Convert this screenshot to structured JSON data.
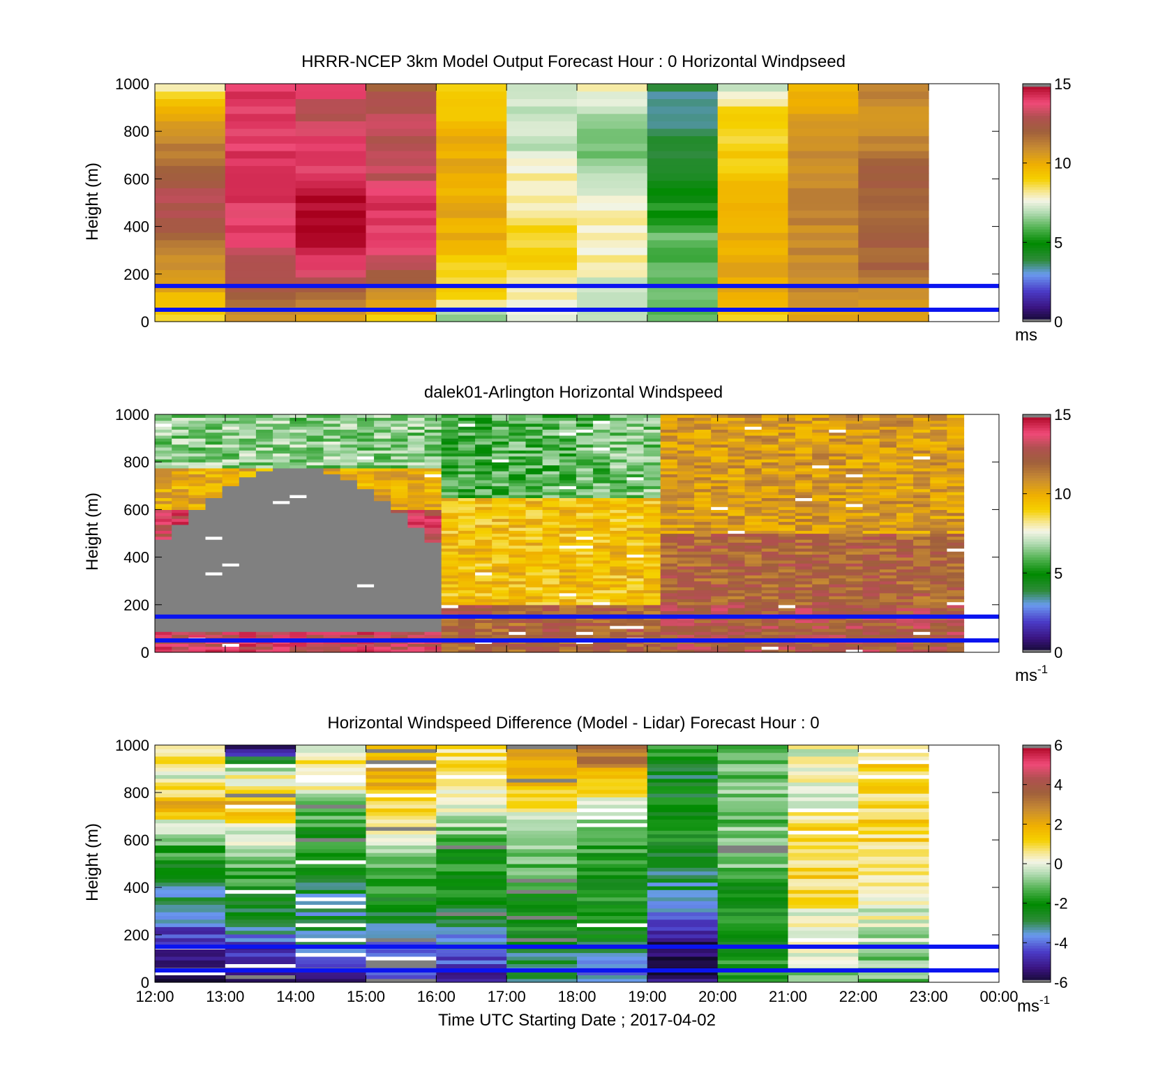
{
  "figure": {
    "xlabel": "Time UTC  Starting Date ; 2017-04-02"
  },
  "chart_data": [
    {
      "type": "heatmap",
      "title": "HRRR-NCEP 3km Model Output   Forecast Hour : 0 Horizontal Windpseed",
      "ylabel": "Height (m)",
      "xlabel": "",
      "x_ticks": [
        "12:00",
        "13:00",
        "14:00",
        "15:00",
        "16:00",
        "17:00",
        "18:00",
        "19:00",
        "20:00",
        "21:00",
        "22:00",
        "23:00",
        "00:00"
      ],
      "x_tick_labels_visible": false,
      "xlim_hours": [
        12,
        24
      ],
      "ylim": [
        0,
        1000
      ],
      "y_ticks": [
        0,
        200,
        400,
        600,
        800,
        1000
      ],
      "colorbar": {
        "min": 0,
        "max": 15,
        "ticks": [
          0,
          5,
          10,
          15
        ],
        "unit": "ms",
        "unit_sup": ""
      },
      "reference_lines_m": [
        150,
        50
      ],
      "reference_line_color": "#0a14f0",
      "grid_kind": "model",
      "columns_hourly_windspeed_ms": {
        "hours": [
          "12:00",
          "13:00",
          "14:00",
          "15:00",
          "16:00",
          "17:00",
          "18:00",
          "19:00",
          "20:00",
          "21:00",
          "22:00"
        ],
        "surface_to_1000m_profile_summary": [
          [
            9,
            10,
            11,
            12,
            13,
            12,
            11,
            10,
            8
          ],
          [
            11,
            12,
            13,
            14,
            14,
            14,
            14,
            14,
            14
          ],
          [
            10,
            12,
            14,
            15,
            15,
            14,
            14,
            13,
            14
          ],
          [
            9,
            11,
            13,
            14,
            14,
            13,
            13,
            13,
            12
          ],
          [
            6,
            9,
            9,
            10,
            10,
            10,
            10,
            9,
            9
          ],
          [
            7,
            8,
            9,
            9,
            8,
            8,
            7,
            7,
            7
          ],
          [
            7,
            7,
            8,
            8,
            8,
            7,
            6,
            7,
            8
          ],
          [
            6,
            6,
            6,
            6,
            5,
            4,
            4,
            3,
            4
          ],
          [
            9,
            10,
            10,
            10,
            10,
            9,
            9,
            9,
            7
          ],
          [
            10,
            11,
            11,
            11,
            11,
            11,
            11,
            10,
            10
          ],
          [
            10,
            11,
            12,
            12,
            12,
            12,
            11,
            11,
            11
          ]
        ]
      }
    },
    {
      "type": "heatmap",
      "title": "dalek01-Arlington  Horizontal Windspeed",
      "ylabel": "Height (m)",
      "xlabel": "",
      "x_ticks": [
        "12:00",
        "13:00",
        "14:00",
        "15:00",
        "16:00",
        "17:00",
        "18:00",
        "19:00",
        "20:00",
        "21:00",
        "22:00",
        "23:00",
        "00:00"
      ],
      "x_tick_labels_visible": false,
      "xlim_hours": [
        12,
        24
      ],
      "ylim": [
        0,
        1000
      ],
      "y_ticks": [
        0,
        200,
        400,
        600,
        800,
        1000
      ],
      "colorbar": {
        "min": 0,
        "max": 15,
        "ticks": [
          0,
          5,
          10,
          15
        ],
        "unit": "ms",
        "unit_sup": "-1"
      },
      "reference_lines_m": [
        150,
        50
      ],
      "reference_line_color": "#0a14f0",
      "grid_kind": "lidar",
      "missing_data_region": "grey (no retrieval) from about 100 m up to 450–780 m between 12:00 and 16:00"
    },
    {
      "type": "heatmap",
      "title": "Horizontal Windspeed Difference (Model - Lidar) Forecast Hour : 0",
      "ylabel": "Height (m)",
      "xlabel": "Time UTC  Starting Date ; 2017-04-02",
      "x_ticks": [
        "12:00",
        "13:00",
        "14:00",
        "15:00",
        "16:00",
        "17:00",
        "18:00",
        "19:00",
        "20:00",
        "21:00",
        "22:00",
        "23:00",
        "00:00"
      ],
      "x_tick_labels_visible": true,
      "xlim_hours": [
        12,
        24
      ],
      "ylim": [
        0,
        1000
      ],
      "y_ticks": [
        0,
        200,
        400,
        600,
        800,
        1000
      ],
      "colorbar": {
        "min": -6,
        "max": 6,
        "ticks": [
          -6,
          -4,
          -2,
          0,
          2,
          4,
          6
        ],
        "unit": "ms",
        "unit_sup": "-1"
      },
      "reference_lines_m": [
        150,
        50
      ],
      "reference_line_color": "#0a14f0",
      "grid_kind": "difference",
      "columns_hourly_difference_ms": {
        "hours": [
          "12:00",
          "13:00",
          "14:00",
          "15:00",
          "16:00",
          "17:00",
          "18:00",
          "19:00",
          "20:00",
          "21:00",
          "22:00"
        ],
        "surface_to_1000m_profile_summary": [
          [
            -6,
            -5,
            -4,
            -3,
            -2,
            -1,
            2,
            0,
            1
          ],
          [
            -5,
            -5,
            -3,
            -2,
            -1,
            0,
            2,
            0,
            -6
          ],
          [
            -5,
            -4,
            -3,
            -3,
            -2,
            -2,
            -1,
            1,
            0
          ],
          [
            -5,
            -4,
            -3,
            -2,
            -1,
            0,
            1,
            2,
            2
          ],
          [
            -5,
            -4,
            -3,
            -2,
            -2,
            -1,
            0,
            1,
            1
          ],
          [
            -3,
            -3,
            -2,
            -2,
            -1,
            -1,
            1,
            2,
            2
          ],
          [
            -4,
            -3,
            -2,
            -2,
            -2,
            -1,
            0,
            2,
            4
          ],
          [
            -5,
            -6,
            -4,
            -3,
            -3,
            -2,
            -2,
            -3,
            -1
          ],
          [
            -2,
            -2,
            -2,
            -2,
            -1,
            -1,
            -1,
            -1,
            -1
          ],
          [
            -1,
            0,
            0,
            1,
            1,
            1,
            0,
            0,
            0
          ],
          [
            -1,
            -1,
            0,
            0,
            1,
            1,
            1,
            1,
            1
          ]
        ]
      }
    }
  ]
}
